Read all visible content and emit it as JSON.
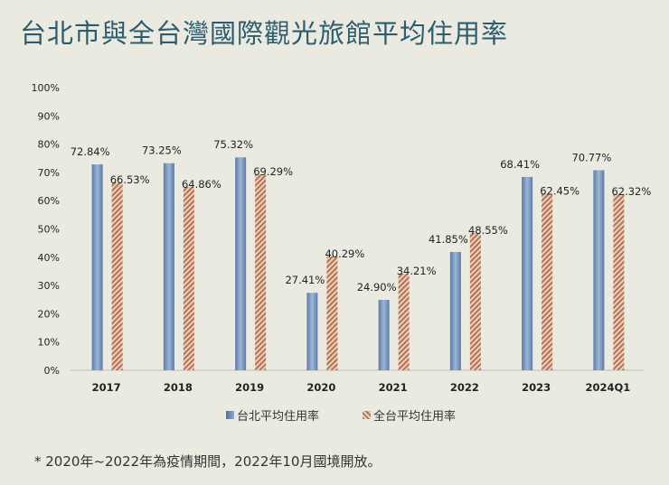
{
  "title": "台北市與全台灣國際觀光旅館平均住用率",
  "note": "* 2020年~2022年為疫情期間，2022年10月國境開放。",
  "chart_data": {
    "type": "bar",
    "title": "台北市與全台灣國際觀光旅館平均住用率",
    "categories": [
      "2017",
      "2018",
      "2019",
      "2020",
      "2021",
      "2022",
      "2023",
      "2024Q1"
    ],
    "series": [
      {
        "name": "台北平均住用率",
        "values": [
          72.84,
          73.25,
          75.32,
          27.41,
          24.9,
          41.85,
          68.41,
          70.77
        ],
        "labels": [
          "72.84%",
          "73.25%",
          "75.32%",
          "27.41%",
          "24.90%",
          "41.85%",
          "68.41%",
          "70.77%"
        ],
        "color": "#6f8fb8",
        "pattern": "gradient"
      },
      {
        "name": "全台平均住用率",
        "values": [
          66.53,
          64.86,
          69.29,
          40.29,
          34.21,
          48.55,
          62.45,
          62.32
        ],
        "labels": [
          "66.53%",
          "64.86%",
          "69.29%",
          "40.29%",
          "34.21%",
          "48.55%",
          "62.45%",
          "62.32%"
        ],
        "color": "#c98a6e",
        "pattern": "diagonal-hatch"
      }
    ],
    "ylim": [
      0,
      100
    ],
    "yticks": [
      "0%",
      "10%",
      "20%",
      "30%",
      "40%",
      "50%",
      "60%",
      "70%",
      "80%",
      "90%",
      "100%"
    ],
    "grid": false,
    "legend": "bottom"
  }
}
